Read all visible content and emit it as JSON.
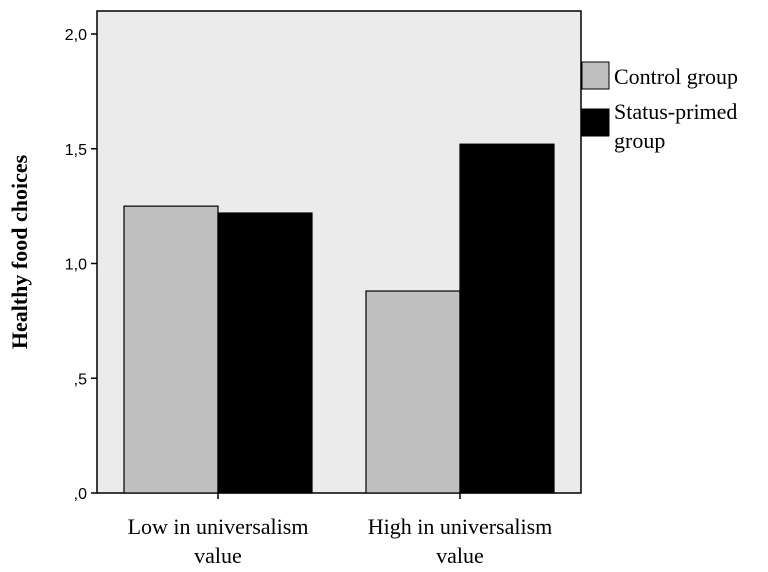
{
  "chart_data": {
    "type": "bar",
    "title": "",
    "xlabel": "",
    "ylabel": "Healthy food choices",
    "ylim": [
      0,
      2.0
    ],
    "yticks": [
      {
        "value": 0.0,
        "label": ",0"
      },
      {
        "value": 0.5,
        "label": ",5"
      },
      {
        "value": 1.0,
        "label": "1,0"
      },
      {
        "value": 1.5,
        "label": "1,5"
      },
      {
        "value": 2.0,
        "label": "2,0"
      }
    ],
    "categories": [
      {
        "line1": "Low in universalism",
        "line2": "value"
      },
      {
        "line1": "High in universalism",
        "line2": "value"
      }
    ],
    "series": [
      {
        "name": "Control group",
        "color": "#c0c0c0",
        "values": [
          1.25,
          0.88
        ]
      },
      {
        "name": "Status-primed group",
        "legend_line1": "Status-primed",
        "legend_line2": "group",
        "color": "#000000",
        "values": [
          1.22,
          1.52
        ]
      }
    ],
    "plot_background": "#ebebeb",
    "grid": false,
    "legend_position": "right"
  }
}
